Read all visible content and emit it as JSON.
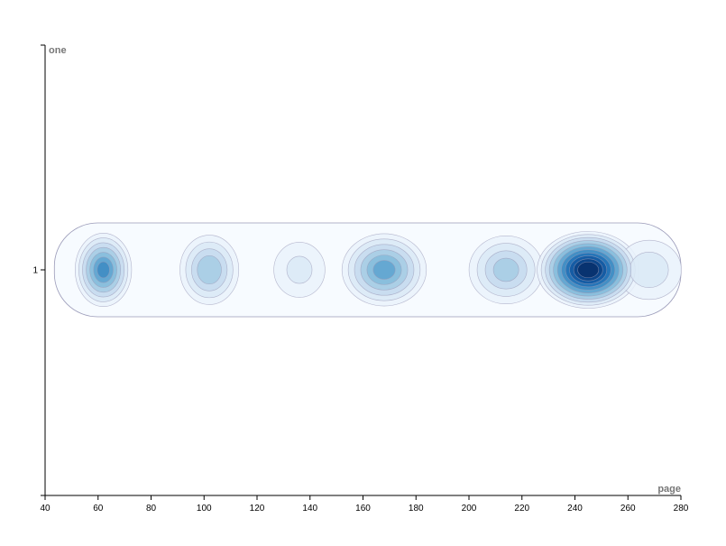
{
  "chart_data": {
    "type": "heatmap",
    "subtype": "density-contour",
    "xlabel": "page",
    "ylabel": "one",
    "xlim": [
      40,
      280
    ],
    "x_ticks": [
      40,
      60,
      80,
      100,
      120,
      140,
      160,
      180,
      200,
      220,
      240,
      260,
      280
    ],
    "y_ticks": [
      1
    ],
    "y_value": 1,
    "colormap": "Blues",
    "contour_stroke": "#9a9ab8",
    "grid": false,
    "legend": "none",
    "density_clusters": [
      {
        "x": 62,
        "y": 1,
        "weight": 0.62,
        "spread_x": 8
      },
      {
        "x": 102,
        "y": 1,
        "weight": 0.42,
        "spread_x": 9
      },
      {
        "x": 136,
        "y": 1,
        "weight": 0.18,
        "spread_x": 10
      },
      {
        "x": 168,
        "y": 1,
        "weight": 0.55,
        "spread_x": 13
      },
      {
        "x": 214,
        "y": 1,
        "weight": 0.38,
        "spread_x": 12
      },
      {
        "x": 245,
        "y": 1,
        "weight": 1.0,
        "spread_x": 15
      },
      {
        "x": 268,
        "y": 1,
        "weight": 0.22,
        "spread_x": 12
      }
    ]
  }
}
